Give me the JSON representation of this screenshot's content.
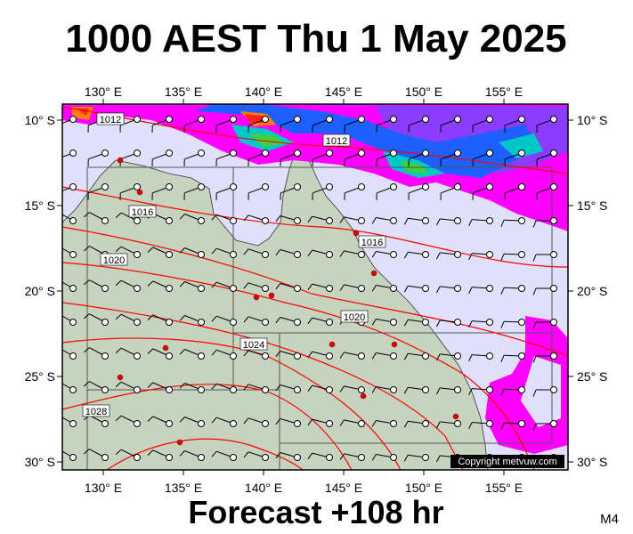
{
  "title": "1000 AEST Thu 1 May 2025",
  "footer": "Forecast +108 hr",
  "model": "M4",
  "copyright": "Copyright metvuw.com",
  "lon_labels": [
    "130° E",
    "135° E",
    "140° E",
    "145° E",
    "150° E",
    "155° E"
  ],
  "lat_labels": [
    "10° S",
    "15° S",
    "20° S",
    "25° S",
    "30° S"
  ],
  "isobar_labels": [
    "1012",
    "1012",
    "1016",
    "1016",
    "1020",
    "1020",
    "1024",
    "1028"
  ]
}
